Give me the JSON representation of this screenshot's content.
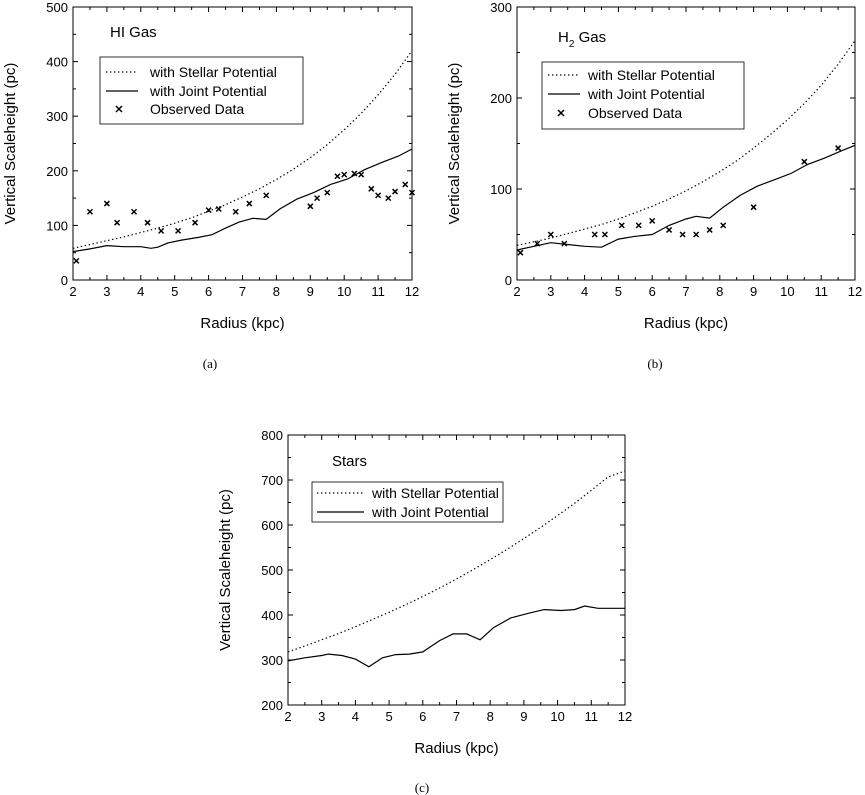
{
  "chart_data": [
    {
      "type": "line",
      "panel": "a",
      "caption": "(a)",
      "title": "HI Gas",
      "xlabel": "Radius  (kpc)",
      "ylabel": "Vertical Scaleheight  (pc)",
      "xlim": [
        2,
        12
      ],
      "ylim": [
        0,
        500
      ],
      "xticks": [
        2,
        3,
        4,
        5,
        6,
        7,
        8,
        9,
        10,
        11,
        12
      ],
      "yticks": [
        0,
        100,
        200,
        300,
        400,
        500
      ],
      "legend_position": "upper-left",
      "series": [
        {
          "name": "with Stellar Potential",
          "style": "dotted",
          "x": [
            2,
            2.5,
            3,
            3.5,
            4,
            4.5,
            5,
            5.5,
            6,
            6.5,
            7,
            7.5,
            8,
            8.5,
            9,
            9.5,
            10,
            10.5,
            11,
            11.5,
            12
          ],
          "y": [
            58,
            65,
            72,
            79,
            87,
            95,
            104,
            114,
            126,
            138,
            152,
            167,
            184,
            203,
            224,
            248,
            275,
            305,
            339,
            377,
            420
          ]
        },
        {
          "name": "with Joint Potential",
          "style": "solid",
          "x": [
            2,
            2.5,
            3,
            3.5,
            4,
            4.3,
            4.5,
            4.8,
            5.2,
            5.7,
            6.1,
            6.5,
            6.9,
            7.3,
            7.7,
            8.1,
            8.6,
            9.1,
            9.6,
            10.1,
            10.6,
            11.1,
            11.6,
            12
          ],
          "y": [
            52,
            57,
            63,
            61,
            61,
            58,
            60,
            68,
            73,
            78,
            83,
            95,
            106,
            113,
            111,
            130,
            148,
            160,
            175,
            185,
            202,
            215,
            227,
            240
          ]
        },
        {
          "name": "Observed Data",
          "style": "markers",
          "x": [
            2.1,
            2.5,
            3.0,
            3.3,
            3.8,
            4.2,
            4.6,
            5.1,
            5.6,
            6.0,
            6.3,
            6.8,
            7.2,
            7.7,
            9.0,
            9.2,
            9.5,
            9.8,
            10.0,
            10.3,
            10.5,
            10.8,
            11.0,
            11.3,
            11.5,
            11.8,
            12.0
          ],
          "y": [
            35,
            125,
            140,
            105,
            125,
            105,
            90,
            90,
            105,
            128,
            130,
            125,
            140,
            155,
            135,
            150,
            160,
            190,
            193,
            195,
            193,
            167,
            155,
            150,
            162,
            175,
            160
          ]
        }
      ]
    },
    {
      "type": "line",
      "panel": "b",
      "caption": "(b)",
      "title": "H2 Gas",
      "title_main": "H",
      "title_sub": "2",
      "title_rest": " Gas",
      "xlabel": "Radius  (kpc)",
      "ylabel": "Vertical Scaleheight  (pc)",
      "xlim": [
        2,
        12
      ],
      "ylim": [
        0,
        300
      ],
      "xticks": [
        2,
        3,
        4,
        5,
        6,
        7,
        8,
        9,
        10,
        11,
        12
      ],
      "yticks": [
        0,
        100,
        200,
        300
      ],
      "legend_position": "upper-left",
      "series": [
        {
          "name": "with Stellar Potential",
          "style": "dotted",
          "x": [
            2,
            2.5,
            3,
            3.5,
            4,
            4.5,
            5,
            5.5,
            6,
            6.5,
            7,
            7.5,
            8,
            8.5,
            9,
            9.5,
            10,
            10.5,
            11,
            11.5,
            12
          ],
          "y": [
            38,
            42,
            46,
            51,
            56,
            61,
            67,
            74,
            81,
            89,
            98,
            108,
            119,
            131,
            145,
            160,
            176,
            194,
            214,
            237,
            263
          ]
        },
        {
          "name": "with Joint Potential",
          "style": "solid",
          "x": [
            2,
            2.5,
            3,
            3.5,
            4,
            4.5,
            5,
            5.5,
            6,
            6.5,
            7,
            7.3,
            7.7,
            8.1,
            8.6,
            9.1,
            9.6,
            10.1,
            10.6,
            11.1,
            11.6,
            12
          ],
          "y": [
            33,
            37,
            41,
            39,
            37,
            36,
            45,
            48,
            50,
            60,
            67,
            70,
            68,
            80,
            93,
            103,
            110,
            117,
            127,
            134,
            142,
            148
          ]
        },
        {
          "name": "Observed Data",
          "style": "markers",
          "x": [
            2.1,
            2.6,
            3.0,
            3.4,
            4.3,
            4.6,
            5.1,
            5.6,
            6.0,
            6.5,
            6.9,
            7.3,
            7.7,
            8.1,
            9.0,
            10.5,
            11.5
          ],
          "y": [
            30,
            40,
            50,
            40,
            50,
            50,
            60,
            60,
            65,
            55,
            50,
            50,
            55,
            60,
            80,
            130,
            145
          ]
        }
      ]
    },
    {
      "type": "line",
      "panel": "c",
      "caption": "(c)",
      "title": "Stars",
      "xlabel": "Radius  (kpc)",
      "ylabel": "Vertical Scaleheight  (pc)",
      "xlim": [
        2,
        12
      ],
      "ylim": [
        200,
        800
      ],
      "xticks": [
        2,
        3,
        4,
        5,
        6,
        7,
        8,
        9,
        10,
        11,
        12
      ],
      "yticks": [
        200,
        300,
        400,
        500,
        600,
        700,
        800
      ],
      "legend_position": "upper-left",
      "series": [
        {
          "name": "with Stellar Potential",
          "style": "dotted",
          "x": [
            2,
            2.5,
            3,
            3.5,
            4,
            4.5,
            5,
            5.5,
            6,
            6.5,
            7,
            7.5,
            8,
            8.5,
            9,
            9.5,
            10,
            10.5,
            11,
            11.5,
            12
          ],
          "y": [
            318,
            331,
            345,
            359,
            374,
            390,
            406,
            423,
            441,
            460,
            480,
            501,
            523,
            546,
            570,
            595,
            621,
            648,
            677,
            707,
            720
          ]
        },
        {
          "name": "with Joint Potential",
          "style": "solid",
          "x": [
            2,
            2.5,
            3,
            3.2,
            3.6,
            4,
            4.4,
            4.8,
            5.2,
            5.6,
            6,
            6.5,
            6.9,
            7.3,
            7.7,
            8.1,
            8.6,
            9.1,
            9.6,
            10.1,
            10.5,
            10.8,
            11.2,
            11.6,
            12
          ],
          "y": [
            298,
            305,
            310,
            313,
            310,
            302,
            285,
            305,
            312,
            313,
            318,
            343,
            358,
            358,
            345,
            372,
            393,
            403,
            412,
            410,
            412,
            420,
            415,
            415,
            415
          ]
        }
      ]
    }
  ]
}
